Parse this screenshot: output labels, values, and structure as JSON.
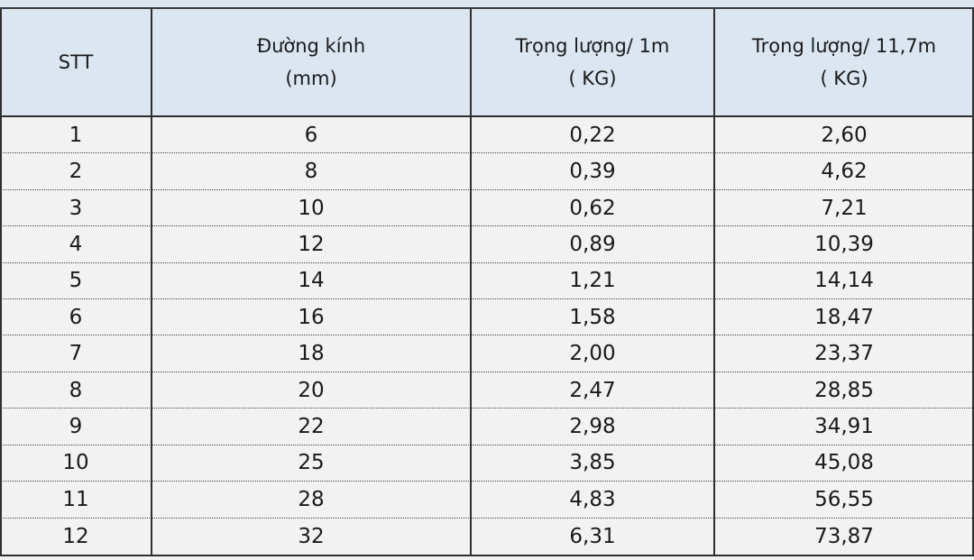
{
  "table": {
    "header": [
      [
        "STT"
      ],
      [
        "Đường kính",
        "(mm)"
      ],
      [
        "Trọng lượng/ 1m",
        "( KG)"
      ],
      [
        "Trọng lượng/ 11,7m",
        "( KG)"
      ]
    ],
    "rows": [
      [
        "1",
        "6",
        "0,22",
        "2,60"
      ],
      [
        "2",
        "8",
        "0,39",
        "4,62"
      ],
      [
        "3",
        "10",
        "0,62",
        "7,21"
      ],
      [
        "4",
        "12",
        "0,89",
        "10,39"
      ],
      [
        "5",
        "14",
        "1,21",
        "14,14"
      ],
      [
        "6",
        "16",
        "1,58",
        "18,47"
      ],
      [
        "7",
        "18",
        "2,00",
        "23,37"
      ],
      [
        "8",
        "20",
        "2,47",
        "28,85"
      ],
      [
        "9",
        "22",
        "2,98",
        "34,91"
      ],
      [
        "10",
        "25",
        "3,85",
        "45,08"
      ],
      [
        "11",
        "28",
        "4,83",
        "56,55"
      ],
      [
        "12",
        "32",
        "6,31",
        "73,87"
      ]
    ]
  }
}
